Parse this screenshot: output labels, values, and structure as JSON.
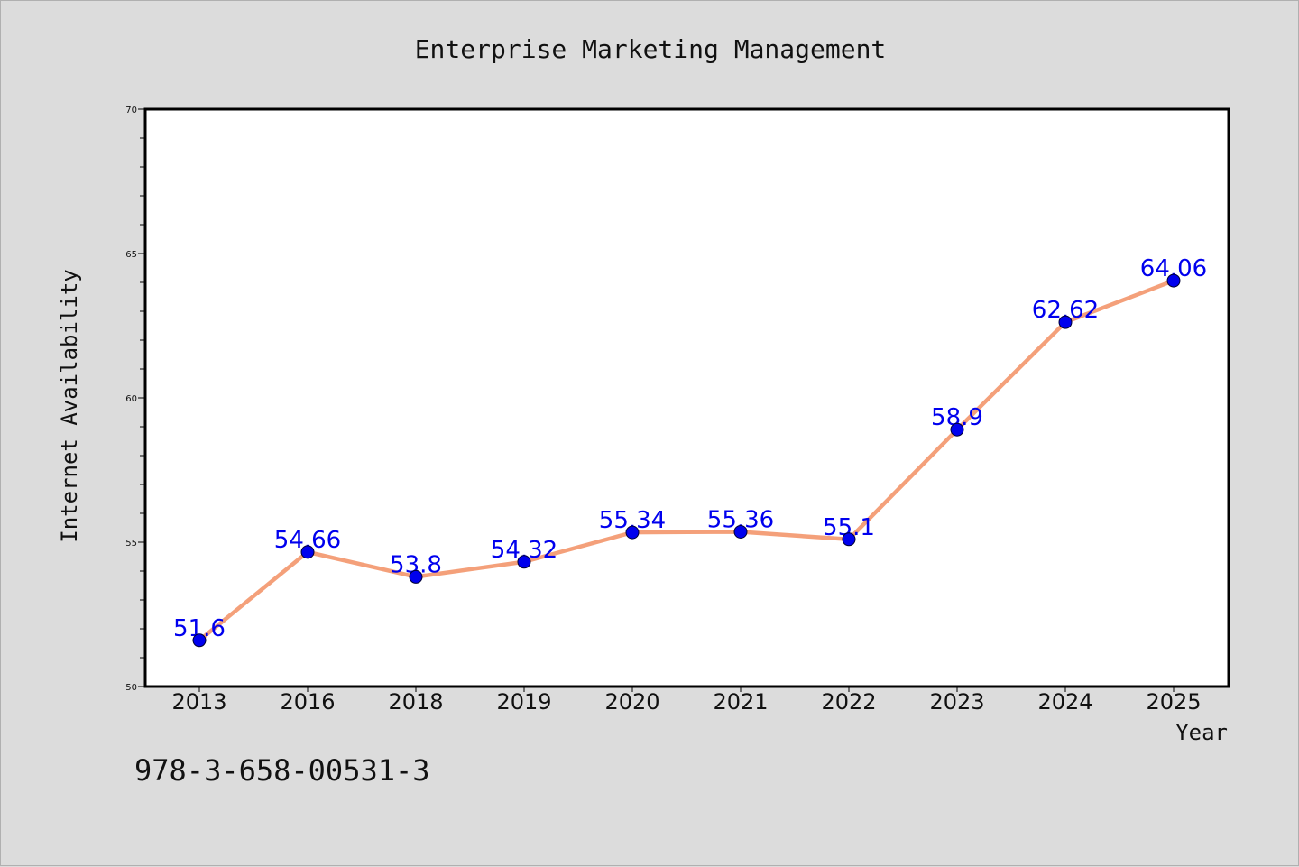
{
  "chart_data": {
    "type": "line",
    "title": "Enterprise Marketing Management",
    "xlabel": "Year",
    "ylabel": "Internet Availability",
    "categories": [
      "2013",
      "2016",
      "2018",
      "2019",
      "2020",
      "2021",
      "2022",
      "2023",
      "2024",
      "2025"
    ],
    "series": [
      {
        "values": [
          51.6,
          54.66,
          53.8,
          54.32,
          55.34,
          55.36,
          55.1,
          58.9,
          62.62,
          64.06
        ],
        "labels": [
          "51.6",
          "54.66",
          "53.8",
          "54.32",
          "55.34",
          "55.36",
          "55.1",
          "58.9",
          "62.62",
          "64.06"
        ],
        "line_color": "#f4a07a",
        "marker_color": "#0000ee"
      }
    ],
    "ylim": [
      50,
      70
    ],
    "yticks": [
      "50",
      "55",
      "60",
      "65",
      "70"
    ],
    "grid": false,
    "legend": "none",
    "label_color": "#0000ee"
  },
  "footer": {
    "isbn": "978-3-658-00531-3"
  }
}
